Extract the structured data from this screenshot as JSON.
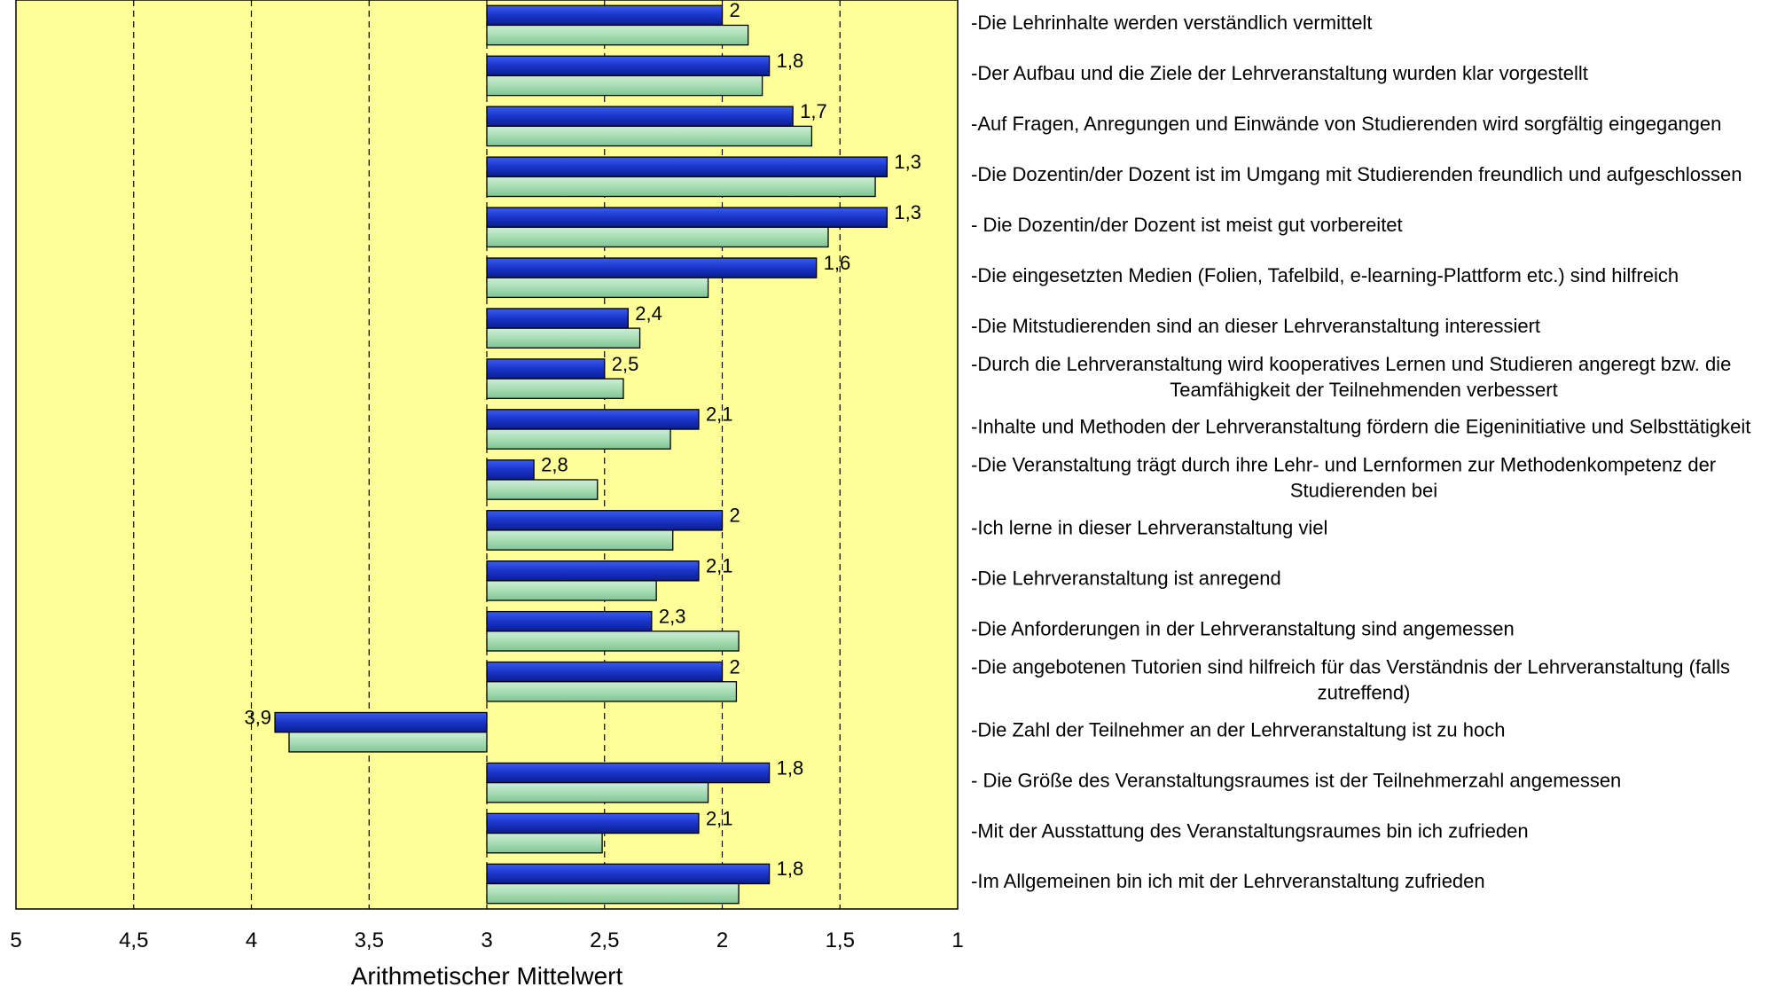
{
  "chart_data": {
    "type": "bar",
    "orientation": "horizontal",
    "x_axis_reversed": true,
    "xlabel": "Arithmetischer Mittelwert",
    "xlim": [
      5,
      1
    ],
    "base_value": 3,
    "x_ticks": [
      "5",
      "4,5",
      "4",
      "3,5",
      "3",
      "2,5",
      "2",
      "1,5",
      "1"
    ],
    "x_tick_values": [
      5,
      4.5,
      4,
      3.5,
      3,
      2.5,
      2,
      1.5,
      1
    ],
    "grid": "vertical dashed",
    "plot_background": "#FFFF99",
    "categories": [
      [
        "-Die Lehrinhalte werden verständlich vermittelt"
      ],
      [
        "-Der Aufbau und die Ziele der Lehrveranstaltung wurden klar vorgestellt"
      ],
      [
        "-Auf Fragen, Anregungen und Einwände von Studierenden wird sorgfältig eingegangen"
      ],
      [
        "-Die Dozentin/der Dozent ist im Umgang mit Studierenden freundlich und aufgeschlossen"
      ],
      [
        "- Die Dozentin/der Dozent ist meist gut vorbereitet"
      ],
      [
        "-Die eingesetzten Medien (Folien, Tafelbild, e-learning-Plattform etc.) sind hilfreich"
      ],
      [
        "-Die Mitstudierenden sind an dieser Lehrveranstaltung interessiert"
      ],
      [
        "-Durch die Lehrveranstaltung wird kooperatives Lernen und Studieren angeregt bzw. die",
        "Teamfähigkeit der Teilnehmenden verbessert"
      ],
      [
        "-Inhalte und Methoden der Lehrveranstaltung fördern die Eigeninitiative und Selbsttätigkeit"
      ],
      [
        "-Die Veranstaltung trägt durch ihre Lehr- und Lernformen zur Methodenkompetenz der",
        "Studierenden bei"
      ],
      [
        "-Ich lerne in dieser Lehrveranstaltung viel"
      ],
      [
        "-Die Lehrveranstaltung ist anregend"
      ],
      [
        "-Die Anforderungen in der Lehrveranstaltung sind angemessen"
      ],
      [
        "-Die angebotenen Tutorien sind hilfreich für das Verständnis der Lehrveranstaltung (falls",
        "zutreffend)"
      ],
      [
        "-Die Zahl der Teilnehmer an der Lehrveranstaltung ist zu hoch"
      ],
      [
        "- Die Größe des Veranstaltungsraumes ist der Teilnehmerzahl angemessen"
      ],
      [
        "-Mit der Ausstattung des Veranstaltungsraumes bin ich zufrieden"
      ],
      [
        "-Im Allgemeinen bin ich mit der Lehrveranstaltung zufrieden"
      ]
    ],
    "series": [
      {
        "color": "#1F3FD0",
        "values": [
          2,
          1.8,
          1.7,
          1.3,
          1.3,
          1.6,
          2.4,
          2.5,
          2.1,
          2.8,
          2,
          2.1,
          2.3,
          2,
          3.9,
          1.8,
          2.1,
          1.8
        ],
        "data_labels": [
          "2",
          "1,8",
          "1,7",
          "1,3",
          "1,3",
          "1,6",
          "2,4",
          "2,5",
          "2,1",
          "2,8",
          "2",
          "2,1",
          "2,3",
          "2",
          "3,9",
          "1,8",
          "2,1",
          "1,8"
        ]
      },
      {
        "color": "#A8DDB4",
        "values": [
          1.89,
          1.83,
          1.62,
          1.35,
          1.55,
          2.06,
          2.35,
          2.42,
          2.22,
          2.53,
          2.21,
          2.28,
          1.93,
          1.94,
          3.84,
          2.06,
          2.51,
          1.93
        ]
      }
    ]
  }
}
